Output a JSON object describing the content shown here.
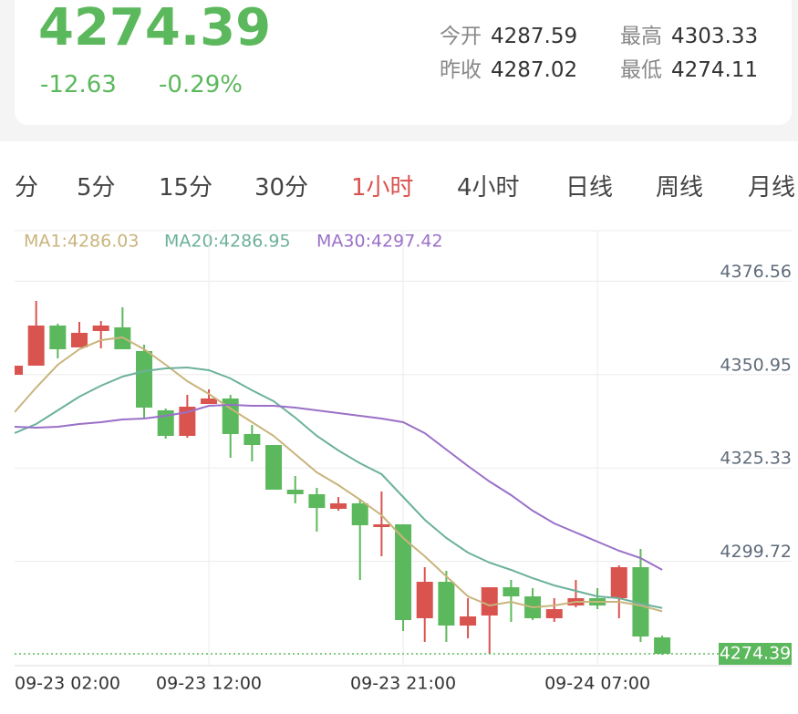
{
  "quote": {
    "price": "4274.39",
    "change": "-12.63",
    "change_pct": "-0.29%",
    "stats": [
      {
        "label": "今开",
        "value": "4287.59"
      },
      {
        "label": "昨收",
        "value": "4287.02"
      },
      {
        "label": "最高",
        "value": "4303.33"
      },
      {
        "label": "最低",
        "value": "4274.11"
      }
    ]
  },
  "tabs": {
    "items": [
      "分",
      "5分",
      "15分",
      "30分",
      "1小时",
      "4小时",
      "日线",
      "周线",
      "月线"
    ],
    "active": 4
  },
  "chart_data": {
    "type": "candlestick",
    "legend": [
      "MA1:4286.03",
      "MA20:4286.95",
      "MA30:4297.42"
    ],
    "up_color": "#d9534f",
    "down_color": "#5cb85c",
    "categories": [
      "09-23 02:00",
      null,
      null,
      null,
      null,
      null,
      null,
      null,
      null,
      "09-23 12:00",
      null,
      null,
      null,
      null,
      null,
      null,
      null,
      null,
      "09-23 21:00",
      null,
      null,
      null,
      null,
      null,
      null,
      null,
      null,
      "09-24 07:00",
      null,
      null,
      null
    ],
    "open": [
      4350.89,
      4353.39,
      4364.39,
      4358.39,
      4362.89,
      4363.89,
      4357.39,
      4341.14,
      4334.14,
      4342.89,
      4344.39,
      4334.64,
      4331.64,
      4319.39,
      4318.14,
      4314.14,
      4315.64,
      4309.14,
      4309.89,
      4284.14,
      4294.14,
      4282.14,
      4284.89,
      4292.64,
      4290.14,
      4284.14,
      4287.64,
      4289.64,
      4289.64,
      4298.14,
      4278.89
    ],
    "high": [
      4353.39,
      4371.14,
      4364.89,
      4365.39,
      4365.64,
      4369.39,
      4359.14,
      4341.64,
      4345.39,
      4346.89,
      4345.39,
      4337.14,
      4331.64,
      4323.14,
      4319.89,
      4317.39,
      4316.89,
      4318.89,
      4309.89,
      4298.14,
      4297.14,
      4289.64,
      4292.64,
      4294.64,
      4292.39,
      4289.64,
      4294.64,
      4292.39,
      4298.64,
      4303.14,
      4279.39
    ],
    "low": [
      4350.89,
      4353.39,
      4355.39,
      4358.39,
      4358.14,
      4357.89,
      4339.14,
      4333.39,
      4333.64,
      4342.89,
      4328.14,
      4327.14,
      4319.39,
      4315.64,
      4307.89,
      4313.64,
      4294.64,
      4301.14,
      4280.64,
      4277.64,
      4277.64,
      4278.64,
      4274.39,
      4283.14,
      4283.64,
      4283.14,
      4287.14,
      4286.64,
      4284.14,
      4277.64,
      4274.11
    ],
    "close": [
      4353.39,
      4364.39,
      4357.89,
      4362.39,
      4364.39,
      4357.89,
      4341.89,
      4334.14,
      4342.14,
      4344.39,
      4334.64,
      4331.64,
      4319.39,
      4318.14,
      4314.39,
      4315.64,
      4309.64,
      4309.89,
      4283.64,
      4294.14,
      4282.14,
      4284.64,
      4292.64,
      4290.14,
      4284.14,
      4286.64,
      4289.64,
      4287.64,
      4298.14,
      4279.14,
      4274.39
    ],
    "series": [
      {
        "name": "MA1",
        "color": "#c9b47c",
        "values": [
          4340.64,
          4347.39,
          4353.64,
          4357.89,
          4360.39,
          4361.14,
          4357.89,
          4353.64,
          4349.14,
          4345.64,
          4341.64,
          4337.89,
          4334.14,
          4329.14,
          4324.14,
          4320.64,
          4316.64,
          4312.39,
          4306.14,
          4301.14,
          4295.64,
          4290.14,
          4287.64,
          4288.64,
          4287.14,
          4287.64,
          4288.64,
          4288.64,
          4288.64,
          4287.64,
          4286.03
        ]
      },
      {
        "name": "MA20",
        "color": "#6cb19c",
        "values": [
          4334.89,
          4337.39,
          4341.14,
          4344.89,
          4347.89,
          4350.39,
          4351.89,
          4352.64,
          4352.89,
          4352.14,
          4349.89,
          4346.64,
          4343.64,
          4339.14,
          4334.14,
          4330.14,
          4326.64,
          4323.64,
          4317.39,
          4311.14,
          4306.14,
          4302.14,
          4299.39,
          4297.39,
          4295.14,
          4293.14,
          4291.64,
          4290.14,
          4289.64,
          4288.14,
          4286.95
        ]
      },
      {
        "name": "MA30",
        "color": "#9a70c8",
        "values": [
          4336.64,
          4336.39,
          4336.64,
          4337.39,
          4337.89,
          4338.64,
          4338.89,
          4339.64,
          4340.64,
          4342.39,
          4342.64,
          4342.39,
          4342.39,
          4341.89,
          4341.14,
          4340.39,
          4339.64,
          4338.89,
          4337.89,
          4334.89,
          4330.39,
          4325.89,
          4321.64,
          4317.89,
          4313.64,
          4310.14,
          4307.64,
          4305.14,
          4302.64,
          4300.64,
          4297.42
        ]
      }
    ],
    "current": {
      "value": 4274.39,
      "label": "4274.39"
    },
    "ylim": [
      4271.14,
      4390.39
    ],
    "yticks": [
      4376.56,
      4350.95,
      4325.33,
      4299.72
    ],
    "grid": true
  }
}
